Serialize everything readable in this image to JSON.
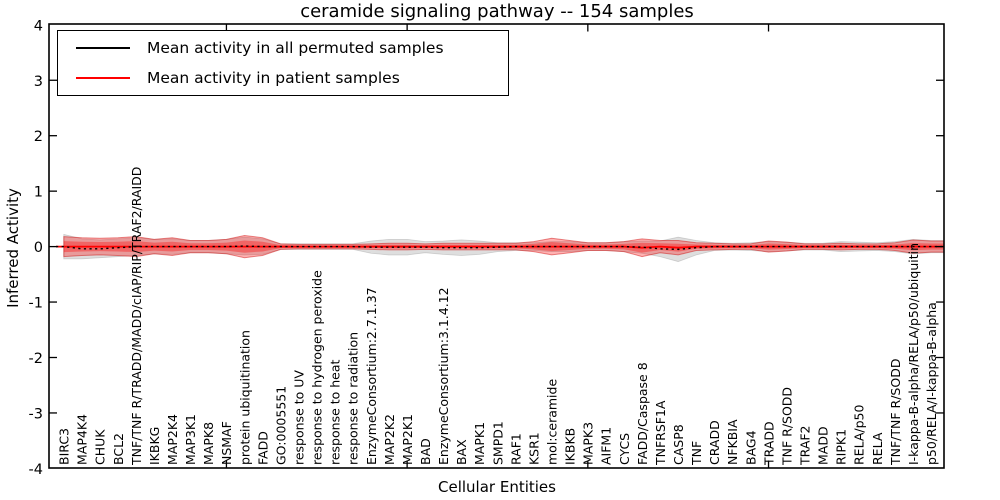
{
  "title": "ceramide signaling pathway -- 154 samples",
  "legend": {
    "items": [
      {
        "label": "Mean activity in all permuted samples",
        "color": "#000000"
      },
      {
        "label": "Mean activity in patient samples",
        "color": "#ff0000"
      }
    ]
  },
  "axes": {
    "ylabel": "Inferred Activity",
    "xlabel": "Cellular Entities",
    "ytick_labels": [
      "4",
      "3",
      "2",
      "1",
      "0",
      "-1",
      "-2",
      "-3",
      "-4"
    ],
    "ytick_values": [
      4,
      3,
      2,
      1,
      0,
      -1,
      -2,
      -3,
      -4
    ]
  },
  "colors": {
    "patient": "#ff0000",
    "permuted": "#000000",
    "patient_band_fill": "#ff0000",
    "permuted_band_fill": "#bdbdbd",
    "spine": "#000000",
    "background": "#ffffff"
  },
  "chart_data": {
    "type": "line",
    "title": "ceramide signaling pathway -- 154 samples",
    "xlabel": "Cellular Entities",
    "ylabel": "Inferred Activity",
    "ylim": [
      -4,
      4
    ],
    "grid": false,
    "legend_position": "upper left",
    "categories": [
      "BIRC3",
      "MAP4K4",
      "CHUK",
      "BCL2",
      "TNF/TNF R/TRADD/MADD/cIAP/RIP/TRAF2/RAIDD",
      "IKBKG",
      "MAP2K4",
      "MAP3K1",
      "MAPK8",
      "NSMAF",
      "protein ubiquitination",
      "FADD",
      "GO:0005551",
      "response to UV",
      "response to hydrogen peroxide",
      "response to heat",
      "response to radiation",
      "EnzymeConsortium:2.7.1.37",
      "MAP2K2",
      "MAP2K1",
      "BAD",
      "EnzymeConsortium:3.1.4.12",
      "BAX",
      "MAPK1",
      "SMPD1",
      "RAF1",
      "KSR1",
      "mol:ceramide",
      "IKBKB",
      "MAPK3",
      "AIFM1",
      "CYCS",
      "FADD/Caspase 8",
      "TNFRSF1A",
      "CASP8",
      "TNF",
      "CRADD",
      "NFKBIA",
      "BAG4",
      "TRADD",
      "TNF R/SODD",
      "TRAF2",
      "MADD",
      "RIPK1",
      "RELA/p50",
      "RELA",
      "TNF/TNF R/SODD",
      "I-kappa-B-alpha/RELA/p50/ubiquitin",
      "p50/RELA/I-kappa-B-alpha"
    ],
    "xtick_mark_positions": [
      10,
      20,
      30,
      40
    ],
    "series": [
      {
        "name": "Mean activity in all permuted samples",
        "color": "#000000",
        "style": "dotted",
        "values": [
          0,
          -0.04,
          -0.04,
          -0.02,
          0,
          0,
          0,
          0,
          0,
          0,
          0.01,
          0,
          0,
          0,
          0,
          0,
          0,
          -0.01,
          -0.01,
          -0.01,
          -0.01,
          -0.02,
          -0.02,
          -0.02,
          -0.01,
          0,
          0,
          0,
          0,
          0,
          0,
          0,
          -0.01,
          -0.04,
          -0.05,
          -0.02,
          0,
          0,
          0,
          0,
          0,
          0,
          0,
          0,
          0,
          0,
          0,
          0,
          0
        ]
      },
      {
        "name": "Mean activity in patient samples",
        "color": "#ff0000",
        "style": "solid",
        "values": [
          0,
          0,
          0,
          0,
          0,
          0,
          0,
          0,
          0,
          0,
          0,
          0,
          0,
          0,
          0,
          0,
          0,
          0,
          0,
          0,
          0,
          0,
          0,
          0,
          0,
          0,
          0,
          0,
          0,
          0,
          0,
          0,
          -0.02,
          0,
          -0.02,
          0,
          0,
          0,
          0,
          0,
          0,
          0,
          0,
          0,
          0,
          0,
          0,
          0,
          0
        ]
      }
    ],
    "bands": [
      {
        "name": "permuted-std-band",
        "center_series": 0,
        "color": "#bdbdbd",
        "opacity": 0.5,
        "half_widths": [
          0.22,
          0.18,
          0.16,
          0.16,
          0.16,
          0.13,
          0.14,
          0.11,
          0.11,
          0.13,
          0.16,
          0.14,
          0.05,
          0.05,
          0.05,
          0.05,
          0.05,
          0.11,
          0.14,
          0.14,
          0.1,
          0.12,
          0.14,
          0.12,
          0.08,
          0.07,
          0.07,
          0.09,
          0.09,
          0.07,
          0.07,
          0.09,
          0.11,
          0.14,
          0.22,
          0.13,
          0.07,
          0.06,
          0.07,
          0.09,
          0.08,
          0.06,
          0.06,
          0.09,
          0.08,
          0.07,
          0.09,
          0.13,
          0.11
        ]
      },
      {
        "name": "patient-std-band",
        "center_series": 1,
        "color": "#ff0000",
        "opacity": 0.3,
        "half_widths": [
          0.18,
          0.16,
          0.15,
          0.16,
          0.18,
          0.13,
          0.16,
          0.11,
          0.11,
          0.13,
          0.2,
          0.16,
          0.05,
          0.04,
          0.04,
          0.04,
          0.04,
          0.05,
          0.06,
          0.06,
          0.05,
          0.06,
          0.06,
          0.06,
          0.06,
          0.06,
          0.09,
          0.15,
          0.11,
          0.07,
          0.07,
          0.09,
          0.16,
          0.11,
          0.13,
          0.07,
          0.06,
          0.05,
          0.05,
          0.1,
          0.08,
          0.05,
          0.05,
          0.06,
          0.05,
          0.05,
          0.07,
          0.12,
          0.1
        ]
      }
    ]
  }
}
